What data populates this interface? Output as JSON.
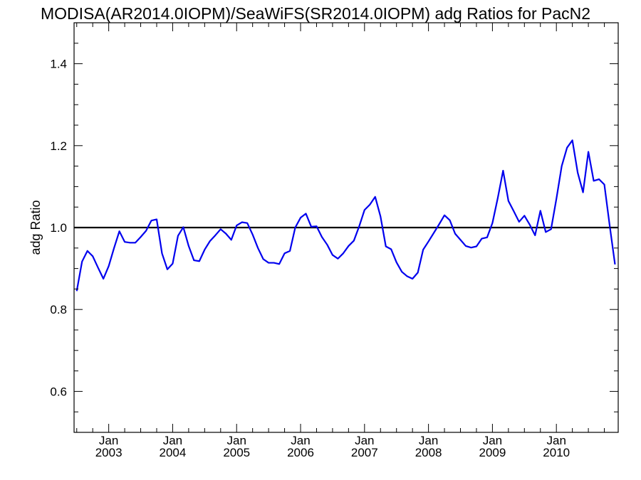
{
  "chart_data": {
    "type": "line",
    "title": "MODISA(AR2014.0IOPM)/SeaWiFS(SR2014.0IOPM)  adg Ratios for PacN2",
    "xlabel": "",
    "ylabel": "adg Ratio",
    "ylim": [
      0.5,
      1.5
    ],
    "xlim": [
      "2002-07",
      "2010-12"
    ],
    "y_ticks": [
      "0.6",
      "0.8",
      "1.0",
      "1.2",
      "1.4"
    ],
    "x_ticks": [
      {
        "month": "Jan",
        "year": "2003",
        "date": "2003-01"
      },
      {
        "month": "Jan",
        "year": "2004",
        "date": "2004-01"
      },
      {
        "month": "Jan",
        "year": "2005",
        "date": "2005-01"
      },
      {
        "month": "Jan",
        "year": "2006",
        "date": "2006-01"
      },
      {
        "month": "Jan",
        "year": "2007",
        "date": "2007-01"
      },
      {
        "month": "Jan",
        "year": "2008",
        "date": "2008-01"
      },
      {
        "month": "Jan",
        "year": "2009",
        "date": "2009-01"
      },
      {
        "month": "Jan",
        "year": "2010",
        "date": "2010-01"
      }
    ],
    "reference_line": {
      "y": 1.0,
      "color": "#000000"
    },
    "series": [
      {
        "color": "#0000ee",
        "x": [
          "2002-07",
          "2002-08",
          "2002-09",
          "2002-10",
          "2002-11",
          "2002-12",
          "2003-01",
          "2003-02",
          "2003-03",
          "2003-04",
          "2003-05",
          "2003-06",
          "2003-07",
          "2003-08",
          "2003-09",
          "2003-10",
          "2003-11",
          "2003-12",
          "2004-01",
          "2004-02",
          "2004-03",
          "2004-04",
          "2004-05",
          "2004-06",
          "2004-07",
          "2004-08",
          "2004-09",
          "2004-10",
          "2004-11",
          "2004-12",
          "2005-01",
          "2005-02",
          "2005-03",
          "2005-04",
          "2005-05",
          "2005-06",
          "2005-07",
          "2005-08",
          "2005-09",
          "2005-10",
          "2005-11",
          "2005-12",
          "2006-01",
          "2006-02",
          "2006-03",
          "2006-04",
          "2006-05",
          "2006-06",
          "2006-07",
          "2006-08",
          "2006-09",
          "2006-10",
          "2006-11",
          "2006-12",
          "2007-01",
          "2007-02",
          "2007-03",
          "2007-04",
          "2007-05",
          "2007-06",
          "2007-07",
          "2007-08",
          "2007-09",
          "2007-10",
          "2007-11",
          "2007-12",
          "2008-01",
          "2008-02",
          "2008-03",
          "2008-04",
          "2008-05",
          "2008-06",
          "2008-07",
          "2008-08",
          "2008-09",
          "2008-10",
          "2008-11",
          "2008-12",
          "2009-01",
          "2009-02",
          "2009-03",
          "2009-04",
          "2009-05",
          "2009-06",
          "2009-07",
          "2009-08",
          "2009-09",
          "2009-10",
          "2009-11",
          "2009-12",
          "2010-01",
          "2010-02",
          "2010-03",
          "2010-04",
          "2010-05",
          "2010-06",
          "2010-07",
          "2010-08",
          "2010-09",
          "2010-10",
          "2010-11",
          "2010-12"
        ],
        "values": [
          0.845,
          0.917,
          0.943,
          0.93,
          0.902,
          0.875,
          0.906,
          0.95,
          0.991,
          0.965,
          0.963,
          0.963,
          0.977,
          0.992,
          1.017,
          1.02,
          0.937,
          0.898,
          0.912,
          0.98,
          1.001,
          0.955,
          0.92,
          0.918,
          0.946,
          0.967,
          0.981,
          0.996,
          0.985,
          0.97,
          1.005,
          1.013,
          1.011,
          0.983,
          0.95,
          0.923,
          0.914,
          0.914,
          0.911,
          0.937,
          0.943,
          1.0,
          1.024,
          1.034,
          1.002,
          1.003,
          0.977,
          0.958,
          0.933,
          0.924,
          0.937,
          0.955,
          0.968,
          1.003,
          1.043,
          1.056,
          1.075,
          1.027,
          0.954,
          0.947,
          0.915,
          0.892,
          0.881,
          0.875,
          0.89,
          0.946,
          0.966,
          0.987,
          1.008,
          1.03,
          1.018,
          0.985,
          0.97,
          0.955,
          0.951,
          0.954,
          0.973,
          0.976,
          1.011,
          1.072,
          1.139,
          1.065,
          1.04,
          1.014,
          1.029,
          1.007,
          0.981,
          1.041,
          0.989,
          0.996,
          1.07,
          1.15,
          1.195,
          1.213,
          1.134,
          1.086,
          1.185,
          1.114,
          1.118,
          1.105,
          1.005,
          0.91
        ]
      }
    ],
    "grid": false,
    "legend": "none"
  }
}
